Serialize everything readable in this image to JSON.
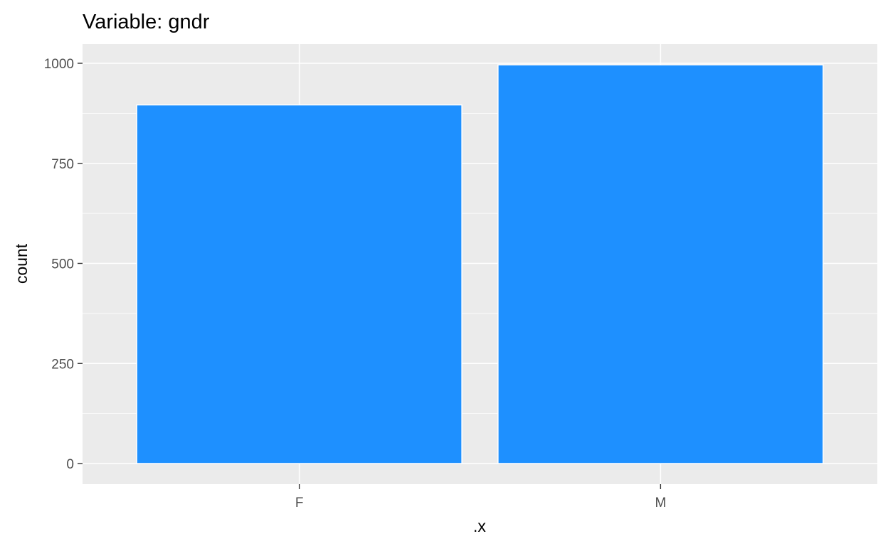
{
  "chart_data": {
    "type": "bar",
    "title": "Variable: gndr",
    "xlabel": ".x",
    "ylabel": "count",
    "categories": [
      "F",
      "M"
    ],
    "values": [
      896,
      996
    ],
    "ylim": [
      0,
      1050
    ],
    "yticks": [
      0,
      250,
      500,
      750,
      1000
    ],
    "grid": true,
    "colors": {
      "bar_fill": "#1E90FF",
      "bar_outline": "#FFFFFF",
      "panel_background": "#EBEBEB",
      "grid_line": "#FFFFFF",
      "tick_label": "#4D4D4D",
      "axis_title": "#000000"
    }
  }
}
